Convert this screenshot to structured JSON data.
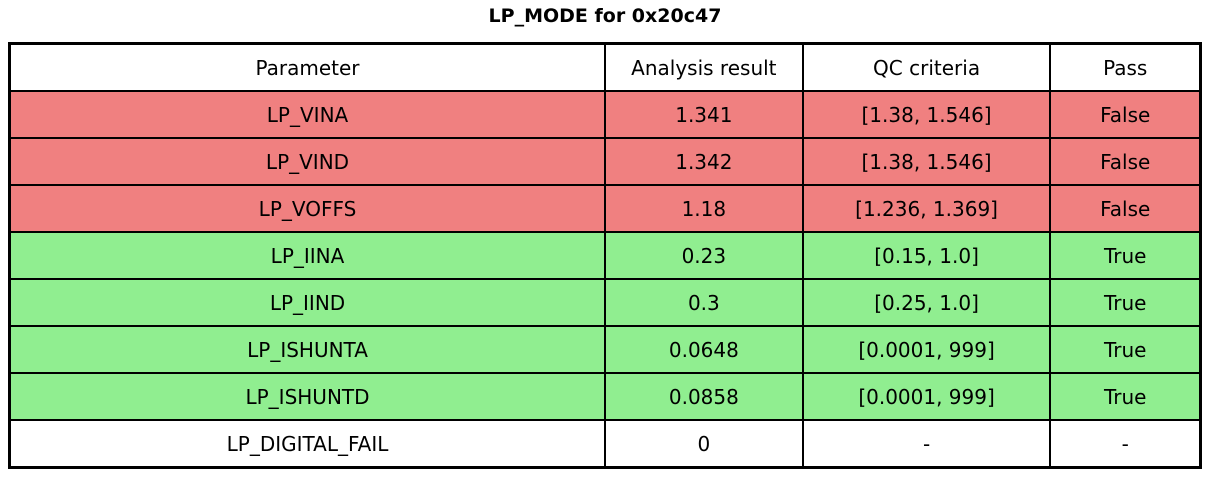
{
  "title": "LP_MODE for 0x20c47",
  "table": {
    "headers": {
      "parameter": "Parameter",
      "result": "Analysis result",
      "criteria": "QC criteria",
      "pass": "Pass"
    },
    "rows": [
      {
        "parameter": "LP_VINA",
        "result": "1.341",
        "criteria": "[1.38, 1.546]",
        "pass": "False",
        "status": "fail"
      },
      {
        "parameter": "LP_VIND",
        "result": "1.342",
        "criteria": "[1.38, 1.546]",
        "pass": "False",
        "status": "fail"
      },
      {
        "parameter": "LP_VOFFS",
        "result": "1.18",
        "criteria": "[1.236, 1.369]",
        "pass": "False",
        "status": "fail"
      },
      {
        "parameter": "LP_IINA",
        "result": "0.23",
        "criteria": "[0.15, 1.0]",
        "pass": "True",
        "status": "pass"
      },
      {
        "parameter": "LP_IIND",
        "result": "0.3",
        "criteria": "[0.25, 1.0]",
        "pass": "True",
        "status": "pass"
      },
      {
        "parameter": "LP_ISHUNTA",
        "result": "0.0648",
        "criteria": "[0.0001, 999]",
        "pass": "True",
        "status": "pass"
      },
      {
        "parameter": "LP_ISHUNTD",
        "result": "0.0858",
        "criteria": "[0.0001, 999]",
        "pass": "True",
        "status": "pass"
      },
      {
        "parameter": "LP_DIGITAL_FAIL",
        "result": "0",
        "criteria": "-",
        "pass": "-",
        "status": "neutral"
      }
    ]
  },
  "colors": {
    "fail_row": "#f08080",
    "pass_row": "#90ee90",
    "neutral_row": "#ffffff",
    "border": "#000000"
  },
  "chart_data": {
    "type": "table",
    "title": "LP_MODE for 0x20c47",
    "columns": [
      "Parameter",
      "Analysis result",
      "QC criteria",
      "Pass"
    ],
    "rows": [
      [
        "LP_VINA",
        "1.341",
        "[1.38, 1.546]",
        "False"
      ],
      [
        "LP_VIND",
        "1.342",
        "[1.38, 1.546]",
        "False"
      ],
      [
        "LP_VOFFS",
        "1.18",
        "[1.236, 1.369]",
        "False"
      ],
      [
        "LP_IINA",
        "0.23",
        "[0.15, 1.0]",
        "True"
      ],
      [
        "LP_IIND",
        "0.3",
        "[0.25, 1.0]",
        "True"
      ],
      [
        "LP_ISHUNTA",
        "0.0648",
        "[0.0001, 999]",
        "True"
      ],
      [
        "LP_ISHUNTD",
        "0.0858",
        "[0.0001, 999]",
        "True"
      ],
      [
        "LP_DIGITAL_FAIL",
        "0",
        "-",
        "-"
      ]
    ],
    "row_status": [
      "fail",
      "fail",
      "fail",
      "pass",
      "pass",
      "pass",
      "pass",
      "neutral"
    ],
    "legend_position": "none",
    "grid": true
  }
}
